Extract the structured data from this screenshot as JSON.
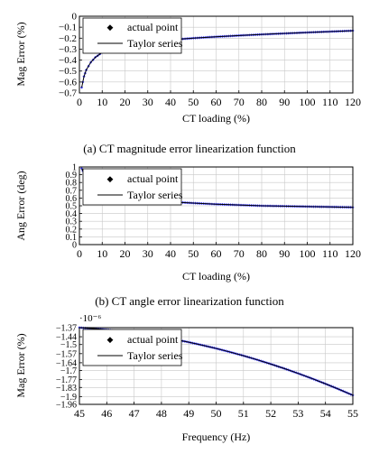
{
  "colors": {
    "point": "#3b3bff",
    "line": "#000000",
    "grid": "#c8c8c8"
  },
  "chart_data": [
    {
      "type": "scatter",
      "caption": "(a) CT magnitude error linearization function",
      "xlabel": "CT loading (%)",
      "ylabel": "Mag Error (%)",
      "xlim": [
        0,
        120
      ],
      "ylim": [
        -0.7,
        0
      ],
      "xticks": [
        "0",
        "10",
        "20",
        "30",
        "40",
        "50",
        "60",
        "70",
        "80",
        "90",
        "100",
        "110",
        "120"
      ],
      "yticks": [
        "0",
        "−0.1",
        "−0.2",
        "−0.3",
        "−0.4",
        "−0.5",
        "−0.6",
        "−0.7"
      ],
      "grid": true,
      "legend_position": "top-left",
      "legend": [
        "actual point",
        "Taylor series"
      ],
      "series": [
        {
          "name": "actual point",
          "style": "markers",
          "x": [
            1,
            2,
            3,
            5,
            7,
            10,
            15,
            20,
            30,
            40,
            50,
            60,
            70,
            80,
            90,
            100,
            110,
            120
          ],
          "y": [
            -0.65,
            -0.55,
            -0.49,
            -0.42,
            -0.375,
            -0.33,
            -0.29,
            -0.265,
            -0.235,
            -0.215,
            -0.2,
            -0.187,
            -0.176,
            -0.166,
            -0.157,
            -0.148,
            -0.14,
            -0.132
          ]
        },
        {
          "name": "Taylor series",
          "style": "line",
          "x": [
            1,
            2,
            3,
            5,
            7,
            10,
            15,
            20,
            30,
            40,
            50,
            60,
            70,
            80,
            90,
            100,
            110,
            120
          ],
          "y": [
            -0.65,
            -0.55,
            -0.49,
            -0.42,
            -0.375,
            -0.33,
            -0.29,
            -0.265,
            -0.235,
            -0.215,
            -0.2,
            -0.187,
            -0.176,
            -0.166,
            -0.157,
            -0.148,
            -0.14,
            -0.132
          ]
        }
      ]
    },
    {
      "type": "scatter",
      "caption": "(b) CT angle error linearization function",
      "xlabel": "CT loading (%)",
      "ylabel": "Ang Error (deg)",
      "xlim": [
        0,
        120
      ],
      "ylim": [
        0,
        1
      ],
      "xticks": [
        "0",
        "10",
        "20",
        "30",
        "40",
        "50",
        "60",
        "70",
        "80",
        "90",
        "100",
        "110",
        "120"
      ],
      "yticks": [
        "0",
        "0.1",
        "0.2",
        "0.3",
        "0.4",
        "0.5",
        "0.6",
        "0.7",
        "0.8",
        "0.9",
        "1"
      ],
      "grid": true,
      "legend_position": "top-left",
      "legend": [
        "actual point",
        "Taylor series"
      ],
      "series": [
        {
          "name": "actual point",
          "style": "markers",
          "x": [
            1,
            2,
            4,
            6,
            10,
            15,
            20,
            30,
            40,
            50,
            60,
            70,
            80,
            90,
            100,
            110,
            120
          ],
          "y": [
            0.98,
            0.92,
            0.82,
            0.75,
            0.68,
            0.63,
            0.6,
            0.57,
            0.55,
            0.535,
            0.52,
            0.51,
            0.5,
            0.495,
            0.49,
            0.485,
            0.48
          ]
        },
        {
          "name": "Taylor series",
          "style": "line",
          "x": [
            1,
            2,
            4,
            6,
            10,
            15,
            20,
            30,
            40,
            50,
            60,
            70,
            80,
            90,
            100,
            110,
            120
          ],
          "y": [
            0.98,
            0.92,
            0.82,
            0.75,
            0.68,
            0.63,
            0.6,
            0.57,
            0.55,
            0.535,
            0.52,
            0.51,
            0.5,
            0.495,
            0.49,
            0.485,
            0.48
          ]
        }
      ]
    },
    {
      "type": "scatter",
      "caption": "",
      "xlabel": "Frequency (Hz)",
      "ylabel": "Mag Error (%)",
      "scale_label": "·10⁻⁶",
      "xlim": [
        45,
        55
      ],
      "ylim": [
        -1.96,
        -1.37
      ],
      "xticks": [
        "45",
        "46",
        "47",
        "48",
        "49",
        "50",
        "51",
        "52",
        "53",
        "54",
        "55"
      ],
      "yticks": [
        "−1.37",
        "−1.44",
        "−1.5",
        "−1.57",
        "−1.64",
        "−1.7",
        "−1.77",
        "−1.83",
        "−1.9",
        "−1.96"
      ],
      "grid": true,
      "legend_position": "top-left",
      "legend": [
        "actual point",
        "Taylor series"
      ],
      "series": [
        {
          "name": "actual point",
          "style": "markers",
          "x": [
            45,
            45.5,
            46,
            46.5,
            47,
            47.5,
            48,
            48.5,
            49,
            49.5,
            50,
            50.5,
            51,
            51.5,
            52,
            52.5,
            53,
            53.5,
            54,
            54.5,
            55
          ],
          "y": [
            -1.37,
            -1.377,
            -1.386,
            -1.397,
            -1.41,
            -1.425,
            -1.442,
            -1.461,
            -1.482,
            -1.505,
            -1.53,
            -1.557,
            -1.586,
            -1.617,
            -1.65,
            -1.685,
            -1.722,
            -1.761,
            -1.802,
            -1.845,
            -1.89
          ]
        },
        {
          "name": "Taylor series",
          "style": "line",
          "x": [
            45,
            45.5,
            46,
            46.5,
            47,
            47.5,
            48,
            48.5,
            49,
            49.5,
            50,
            50.5,
            51,
            51.5,
            52,
            52.5,
            53,
            53.5,
            54,
            54.5,
            55
          ],
          "y": [
            -1.37,
            -1.377,
            -1.386,
            -1.397,
            -1.41,
            -1.425,
            -1.442,
            -1.461,
            -1.482,
            -1.505,
            -1.53,
            -1.557,
            -1.586,
            -1.617,
            -1.65,
            -1.685,
            -1.722,
            -1.761,
            -1.802,
            -1.845,
            -1.89
          ]
        }
      ]
    }
  ]
}
